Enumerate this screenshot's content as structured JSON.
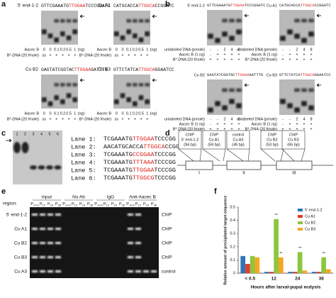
{
  "panel_a": {
    "label": "a",
    "gels": [
      {
        "name": "5' end-1-2",
        "seq": [
          "GTTCGAAATG",
          "TTGGAA",
          "TCCCGGATC"
        ]
      },
      {
        "name": "Cu A1",
        "seq": [
          "CATGCACCA",
          "TTGGCA",
          "CCGGATC"
        ]
      },
      {
        "name": "Cu B2",
        "seq": [
          "GAGTATCGGTAC",
          "TTGGAA",
          "GATTTG"
        ]
      },
      {
        "name": "Cu B3",
        "seq": [
          "GTTCTATCA",
          "TTGGCA",
          "GGAATCC"
        ]
      }
    ],
    "rows": [
      {
        "label": "Aacec B",
        "cells": [
          "0",
          "0",
          "0.1",
          "0.2",
          "0.5",
          "1",
          "(ng)"
        ]
      },
      {
        "label": "B*-DNA (20 fmole)",
        "cells": [
          "ss",
          "+",
          "+",
          "+",
          "+",
          "+"
        ]
      }
    ]
  },
  "panel_b": {
    "label": "b",
    "gels": [
      {
        "name": "5' end-1-2",
        "seq": [
          "GTTCGAAATG",
          "TTGGAA",
          "TCCCGGATC"
        ]
      },
      {
        "name": "Cu A1",
        "seq": [
          "CATGCACCA",
          "TTGGCA",
          "CCGGATC"
        ]
      },
      {
        "name": "Cu B2",
        "seq": [
          "GAGTATCGGTAC",
          "TTGGAA",
          "GATTTG"
        ]
      },
      {
        "name": "Cu B3",
        "seq": [
          "GTTCTATCA",
          "TTGGCA",
          "GGAATCC"
        ]
      }
    ],
    "rows": [
      {
        "label": "unlabeled DNA (pmole)",
        "cells": [
          "-",
          "-",
          "2",
          "4",
          "8"
        ]
      },
      {
        "label": "Aacec B (1 ng)",
        "cells": [
          "-",
          "+",
          "+",
          "+",
          "+"
        ]
      },
      {
        "label": "B*-DNA (20 fmole)",
        "cells": [
          "+",
          "+",
          "+",
          "+",
          "+"
        ]
      }
    ]
  },
  "panel_c": {
    "label": "c",
    "lane_numbers": [
      "1",
      "2",
      "3",
      "4",
      "5",
      "6"
    ],
    "lanes": [
      {
        "name": "Lane 1:",
        "seq": [
          "TCGAAATG",
          "TTGGAA",
          "TCCCGG"
        ]
      },
      {
        "name": "Lane 2:",
        "seq": [
          "AACATGCACCA",
          "TTGGCA",
          "CCGG"
        ]
      },
      {
        "name": "Lane 3:",
        "seq": [
          "TCGAAATG",
          "CCGGAA",
          "TCCCGG"
        ]
      },
      {
        "name": "Lane 4:",
        "seq": [
          "TCGAAATG",
          "TTTAAA",
          "TCCCGG"
        ]
      },
      {
        "name": "Lane 5:",
        "seq": [
          "TCGAAATG",
          "TTGGAA",
          "TCCCGG"
        ]
      },
      {
        "name": "Lane 6:",
        "seq": [
          "TCGAAATG",
          "TTGGCG",
          "TCCCGG"
        ]
      }
    ]
  },
  "panel_d": {
    "label": "d",
    "probes": [
      {
        "lines": [
          "ChIP",
          "5' end-1-2",
          "(94 bp)"
        ]
      },
      {
        "lines": [
          "ChIP",
          "Cu A1",
          "(59 bp)"
        ]
      },
      {
        "lines": [
          "control",
          "Cu A3",
          "(49 bp)"
        ]
      },
      {
        "lines": [
          "ChIP",
          "Cu B2",
          "(53 bp)"
        ]
      },
      {
        "lines": [
          "ChIP",
          "Cu B3",
          "(65 bp)"
        ]
      }
    ],
    "exons": [
      "I",
      "II",
      "III"
    ]
  },
  "panel_e": {
    "label": "e",
    "region": "region:",
    "groups": [
      "input",
      "No Ab",
      "IgG",
      "Anti-Aacec B"
    ],
    "stage_prefix": "P",
    "stages": [
      "<0.5",
      "12",
      "24",
      "36"
    ],
    "rows": [
      {
        "name": "5' end-1-2",
        "type": "ChIP"
      },
      {
        "name": "Cu A1",
        "type": "ChIP"
      },
      {
        "name": "Cu B2",
        "type": "ChIP"
      },
      {
        "name": "Cu B3",
        "type": "ChIP"
      },
      {
        "name": "Cu A3",
        "type": "control"
      }
    ]
  },
  "chart_data": {
    "type": "bar",
    "panel_label": "f",
    "categories": [
      "< 0.5",
      "12",
      "24",
      "36"
    ],
    "x_label": "Hours after larval-pupal ecdysis",
    "y_label": "Relative amount of precipitated target sequence",
    "ylim": [
      0,
      0.5
    ],
    "yticks": [
      0,
      0.1,
      0.2,
      0.3,
      0.4,
      0.5
    ],
    "series": [
      {
        "name": "5' end-1-2",
        "color": "#2e75b6",
        "values": [
          0.13,
          0.01,
          0.01,
          0.01
        ]
      },
      {
        "name": "Cu A1",
        "color": "#e03c31",
        "values": [
          0.07,
          0.01,
          0.01,
          0.01
        ]
      },
      {
        "name": "Cu B2",
        "color": "#8cc63f",
        "values": [
          0.13,
          0.41,
          0.16,
          0.12
        ]
      },
      {
        "name": "Cu B3",
        "color": "#f5a623",
        "values": [
          0.12,
          0.12,
          0.02,
          0.03
        ]
      }
    ],
    "annotations": [
      {
        "text": "**",
        "series": 2,
        "category": 1
      },
      {
        "text": "**",
        "series": 3,
        "category": 1
      },
      {
        "text": "**",
        "series": 2,
        "category": 2
      },
      {
        "text": "**",
        "series": 2,
        "category": 3
      }
    ],
    "legend": "top-right"
  }
}
